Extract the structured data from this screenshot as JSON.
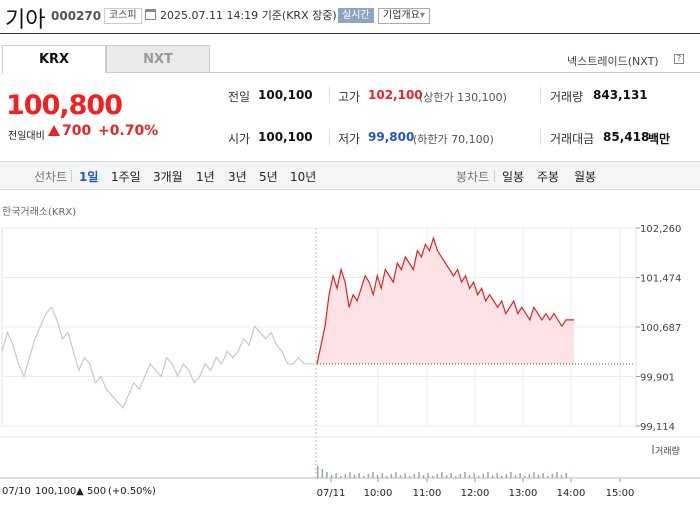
{
  "header": {
    "stock_name": "기아",
    "stock_code": "000270",
    "market_badge": "코스피",
    "timestamp": "2025.07.11 14:19",
    "basis": "기준(KRX 장중)",
    "realtime_badge": "실시간",
    "company_overview_label": "기업개요",
    "company_overview_arrow": "▾"
  },
  "tabs": {
    "krx": "KRX",
    "nxt": "NXT"
  },
  "nxt_trade_label": "넥스트레이드(NXT)",
  "help_icon_text": "?",
  "price": {
    "current": "100,800",
    "change_label": "전일대비",
    "change_value": "700",
    "change_pct": "+0.70%"
  },
  "stats": {
    "prev_label": "전일",
    "prev_value": "100,100",
    "high_label": "고가",
    "high_value": "102,100",
    "upper_limit": "(상한가 130,100)",
    "volume_label": "거래량",
    "volume_value": "843,131",
    "open_label": "시가",
    "open_value": "100,100",
    "low_label": "저가",
    "low_value": "99,800",
    "lower_limit": "(하한가 70,100)",
    "amount_label": "거래대금",
    "amount_value": "85,418",
    "amount_unit": "백만"
  },
  "period_bar": {
    "line_chart_label": "선차트",
    "line_periods": [
      "1일",
      "1주일",
      "3개월",
      "1년",
      "3년",
      "5년",
      "10년"
    ],
    "candle_label": "봉차트",
    "candle_periods": [
      "일봉",
      "주봉",
      "월봉"
    ]
  },
  "exchange_label": "한국거래소(KRX)",
  "volume_legend": "거래량",
  "bottom": {
    "prev_date": "07/10",
    "prev_close": "100,100",
    "prev_change_arrow": "▲",
    "prev_change": "500",
    "prev_change_pct": "(+0.50%)"
  },
  "colors": {
    "up": "#e22222",
    "down": "#2255cc",
    "area_fill": "#fde3e5",
    "prev_line": "#c8c8c8"
  },
  "chart_data": {
    "type": "line",
    "y_ticks": [
      "102,260",
      "101,474",
      "100,687",
      "99,901",
      "99,114"
    ],
    "y_tick_values": [
      102260,
      101474,
      100687,
      99901,
      99114
    ],
    "ylim": [
      99114,
      102260
    ],
    "x_ticks": [
      "07/11",
      "10:00",
      "11:00",
      "12:00",
      "13:00",
      "14:00",
      "15:00"
    ],
    "previous_close": 100100,
    "grid": true,
    "series": [
      {
        "values_prev_day": [
          100300,
          100600,
          100400,
          100100,
          99900,
          100200,
          100500,
          100700,
          100900,
          101000,
          100800,
          100500,
          100600,
          100300,
          100000,
          100200,
          100100,
          99800,
          99900,
          99700,
          99600,
          99500,
          99400,
          99600,
          99800,
          99700,
          99900,
          100100,
          100000,
          99900,
          100200,
          100100,
          99900,
          100100,
          100000,
          99800,
          99900,
          100100,
          100000,
          100200,
          100100,
          100300,
          100200,
          100300,
          100500,
          100400,
          100700,
          100600,
          100500,
          100600,
          100400,
          100300,
          100100,
          100100,
          100200,
          100100,
          100100,
          100100
        ],
        "values_today": [
          100100,
          100400,
          100700,
          101200,
          101500,
          101300,
          101600,
          101400,
          101000,
          101200,
          101100,
          101300,
          101500,
          101400,
          101200,
          101500,
          101300,
          101600,
          101500,
          101400,
          101700,
          101600,
          101800,
          101700,
          101600,
          101900,
          101800,
          102000,
          101900,
          102100,
          101900,
          101800,
          101700,
          101600,
          101500,
          101600,
          101400,
          101500,
          101300,
          101400,
          101200,
          101300,
          101100,
          101200,
          101100,
          101000,
          101100,
          100900,
          101000,
          101100,
          100900,
          101000,
          100900,
          100800,
          101000,
          100900,
          100800,
          100900,
          100800,
          100900,
          100800,
          100700,
          100800,
          100800,
          100800
        ]
      }
    ]
  }
}
